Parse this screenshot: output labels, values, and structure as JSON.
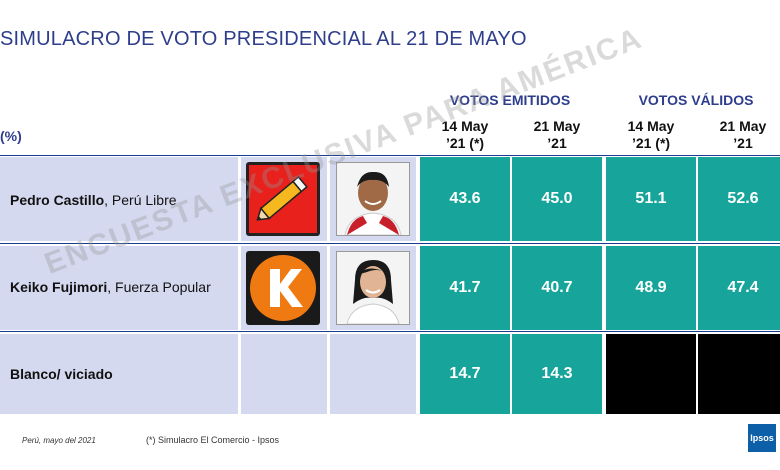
{
  "title": "SIMULACRO DE VOTO PRESIDENCIAL AL 21 DE MAYO",
  "unit_label": "(%)",
  "watermark": "ENCUESTA EXCLUSIVA PARA AMÉRICA",
  "groups": [
    {
      "label": "VOTOS EMITIDOS"
    },
    {
      "label": "VOTOS VÁLIDOS"
    }
  ],
  "columns": [
    {
      "line1": "14 May",
      "line2": "’21 (*)"
    },
    {
      "line1": "21 May",
      "line2": "’21"
    },
    {
      "line1": "14 May",
      "line2": "’21 (*)"
    },
    {
      "line1": "21 May",
      "line2": "’21"
    }
  ],
  "rows": [
    {
      "name": "Pedro Castillo",
      "party": ", Perú Libre",
      "logo_icon": "pencil-icon"
    },
    {
      "name": "Keiko Fujimori",
      "party": ", Fuerza Popular",
      "logo_icon": "k-letter-icon"
    },
    {
      "name": "Blanco/ viciado",
      "party": "",
      "logo_icon": ""
    }
  ],
  "chart_data": {
    "type": "table",
    "title": "SIMULACRO DE VOTO PRESIDENCIAL AL 21 DE MAYO",
    "categories": [
      "Pedro Castillo, Perú Libre",
      "Keiko Fujimori, Fuerza Popular",
      "Blanco/ viciado"
    ],
    "series": [
      {
        "name": "VOTOS EMITIDOS 14 May ’21 (*)",
        "values": [
          "43.6",
          "41.7",
          "14.7"
        ]
      },
      {
        "name": "VOTOS EMITIDOS 21 May ’21",
        "values": [
          "45.0",
          "40.7",
          "14.3"
        ]
      },
      {
        "name": "VOTOS VÁLIDOS 14 May ’21 (*)",
        "values": [
          "51.1",
          "48.9",
          null
        ]
      },
      {
        "name": "VOTOS VÁLIDOS 21 May ’21",
        "values": [
          "52.6",
          "47.4",
          null
        ]
      }
    ]
  },
  "colors": {
    "value_cell": "#17a49a",
    "label_cell": "#d5d9f0",
    "header_text": "#2e3e8c",
    "na_cell": "#000000"
  },
  "footer": {
    "date": "Perú, mayo del 2021",
    "note": "(*) Simulacro El Comercio - Ipsos",
    "brand": "Ipsos"
  }
}
